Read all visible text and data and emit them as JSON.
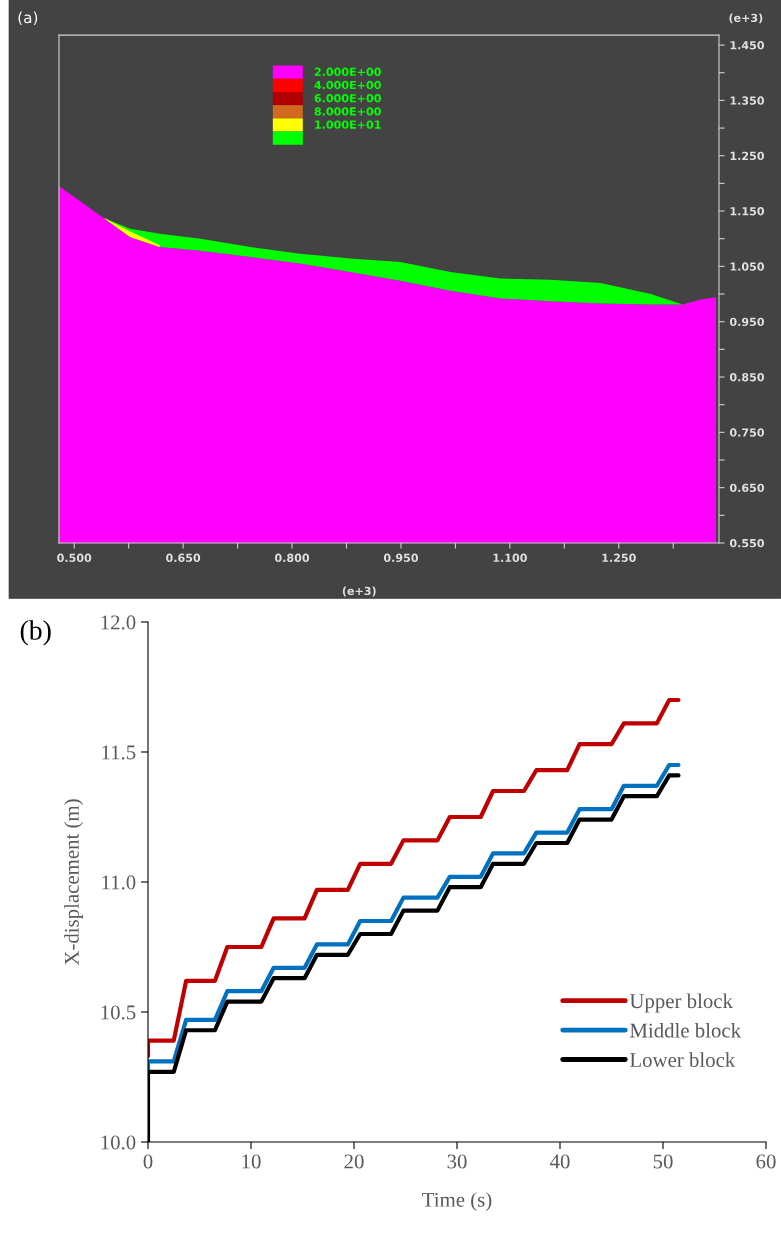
{
  "chart_data": [
    {
      "type": "area",
      "title": "(a)",
      "legend": "top",
      "x": [
        0.479,
        0.542,
        0.577,
        0.618,
        0.674,
        0.743,
        0.811,
        0.88,
        0.949,
        1.018,
        1.087,
        1.156,
        1.225,
        1.294,
        1.338,
        1.363,
        1.384
      ],
      "series": [
        {
          "name": "2.000E+00",
          "color": "#ff00ff",
          "values": [
            1.195,
            1.136,
            1.103,
            1.085,
            1.078,
            1.067,
            1.055,
            1.04,
            1.024,
            1.006,
            0.992,
            0.987,
            0.983,
            0.981,
            0.981,
            0.99,
            0.994
          ]
        },
        {
          "name": "4.000E+00",
          "color": "#ff0000",
          "values": [
            null,
            null,
            null,
            null,
            null,
            null,
            null,
            null,
            null,
            null,
            null,
            null,
            null,
            null,
            null,
            null,
            null
          ]
        },
        {
          "name": "6.000E+00",
          "color": "#b00000",
          "values": [
            null,
            null,
            null,
            null,
            null,
            null,
            null,
            null,
            null,
            null,
            null,
            null,
            null,
            null,
            null,
            null,
            null
          ]
        },
        {
          "name": "8.000E+00",
          "color": "#d2691e",
          "values": [
            null,
            null,
            null,
            null,
            null,
            null,
            null,
            null,
            null,
            null,
            null,
            null,
            null,
            null,
            null,
            null,
            null
          ]
        },
        {
          "name": "1.000E+01",
          "color": "#ffff00",
          "values": [
            null,
            1.137,
            1.113,
            1.088,
            null,
            null,
            null,
            null,
            null,
            null,
            null,
            null,
            null,
            null,
            null,
            null,
            null
          ]
        },
        {
          "color": "#00ff00",
          "values": [
            null,
            1.137,
            1.118,
            1.109,
            1.1,
            1.085,
            1.073,
            1.064,
            1.058,
            1.04,
            1.028,
            1.026,
            1.02,
            1.0,
            0.981,
            null,
            null
          ]
        }
      ],
      "xlim": [
        0.479,
        1.388
      ],
      "ylim": [
        0.55,
        1.468
      ],
      "xticks": [
        {
          "value": 0.5,
          "label": "0.500"
        },
        {
          "value": 0.575,
          "label": null
        },
        {
          "value": 0.65,
          "label": "0.650"
        },
        {
          "value": 0.725,
          "label": null
        },
        {
          "value": 0.8,
          "label": "0.800"
        },
        {
          "value": 0.875,
          "label": null
        },
        {
          "value": 0.95,
          "label": "0.950"
        },
        {
          "value": 1.025,
          "label": null
        },
        {
          "value": 1.1,
          "label": "1.100"
        },
        {
          "value": 1.175,
          "label": null
        },
        {
          "value": 1.25,
          "label": "1.250"
        },
        {
          "value": 1.325,
          "label": null
        }
      ],
      "yticks": [
        {
          "value": 0.55,
          "label": "0.550"
        },
        {
          "value": 0.6,
          "label": null
        },
        {
          "value": 0.65,
          "label": "0.650"
        },
        {
          "value": 0.7,
          "label": null
        },
        {
          "value": 0.75,
          "label": "0.750"
        },
        {
          "value": 0.8,
          "label": null
        },
        {
          "value": 0.85,
          "label": "0.850"
        },
        {
          "value": 0.9,
          "label": null
        },
        {
          "value": 0.95,
          "label": "0.950"
        },
        {
          "value": 1.0,
          "label": null
        },
        {
          "value": 1.05,
          "label": "1.050"
        },
        {
          "value": 1.1,
          "label": null
        },
        {
          "value": 1.15,
          "label": "1.150"
        },
        {
          "value": 1.2,
          "label": null
        },
        {
          "value": 1.25,
          "label": "1.250"
        },
        {
          "value": 1.3,
          "label": null
        },
        {
          "value": 1.35,
          "label": "1.350"
        },
        {
          "value": 1.4,
          "label": null
        },
        {
          "value": 1.45,
          "label": "1.450"
        }
      ],
      "annotations": [
        "(e+3)",
        "(e+3)"
      ]
    },
    {
      "type": "line",
      "title": "(b)",
      "xlabel": "Time (s)",
      "ylabel": "X-displacement (m)",
      "legend": "bottom right",
      "grid": false,
      "marker": "none",
      "line_style": "solid",
      "x": [
        0,
        0,
        2.5,
        3.7,
        6.5,
        7.7,
        11.0,
        12.2,
        15.2,
        16.4,
        19.4,
        20.6,
        23.6,
        24.8,
        28.1,
        29.3,
        32.3,
        33.5,
        36.5,
        37.7,
        40.7,
        41.9,
        45.0,
        46.2,
        49.4,
        50.6,
        51.5
      ],
      "series": [
        {
          "name": "Upper block",
          "color": "#c00000",
          "values": [
            10.33,
            10.39,
            10.39,
            10.62,
            10.62,
            10.75,
            10.75,
            10.86,
            10.86,
            10.97,
            10.97,
            11.07,
            11.07,
            11.16,
            11.16,
            11.25,
            11.25,
            11.35,
            11.35,
            11.43,
            11.43,
            11.53,
            11.53,
            11.61,
            11.61,
            11.7,
            11.7
          ]
        },
        {
          "name": "Middle block",
          "color": "#0070c0",
          "values": [
            10.27,
            10.31,
            10.31,
            10.47,
            10.47,
            10.58,
            10.58,
            10.67,
            10.67,
            10.76,
            10.76,
            10.85,
            10.85,
            10.94,
            10.94,
            11.02,
            11.02,
            11.11,
            11.11,
            11.19,
            11.19,
            11.28,
            11.28,
            11.37,
            11.37,
            11.45,
            11.45
          ]
        },
        {
          "name": "Lower block",
          "color": "#000000",
          "values": [
            10.0,
            10.27,
            10.27,
            10.43,
            10.43,
            10.54,
            10.54,
            10.63,
            10.63,
            10.72,
            10.72,
            10.8,
            10.8,
            10.89,
            10.89,
            10.98,
            10.98,
            11.07,
            11.07,
            11.15,
            11.15,
            11.24,
            11.24,
            11.33,
            11.33,
            11.41,
            11.41
          ]
        }
      ],
      "xlim": [
        0,
        60
      ],
      "ylim": [
        10.0,
        12.0
      ],
      "xticks": [
        0,
        10,
        20,
        30,
        40,
        50,
        60
      ],
      "yticks": [
        {
          "value": 10.0,
          "label": "10.0"
        },
        {
          "value": 10.5,
          "label": "10.5"
        },
        {
          "value": 11.0,
          "label": "11.0"
        },
        {
          "value": 11.5,
          "label": "11.5"
        },
        {
          "value": 12.0,
          "label": "12.0"
        }
      ]
    }
  ]
}
